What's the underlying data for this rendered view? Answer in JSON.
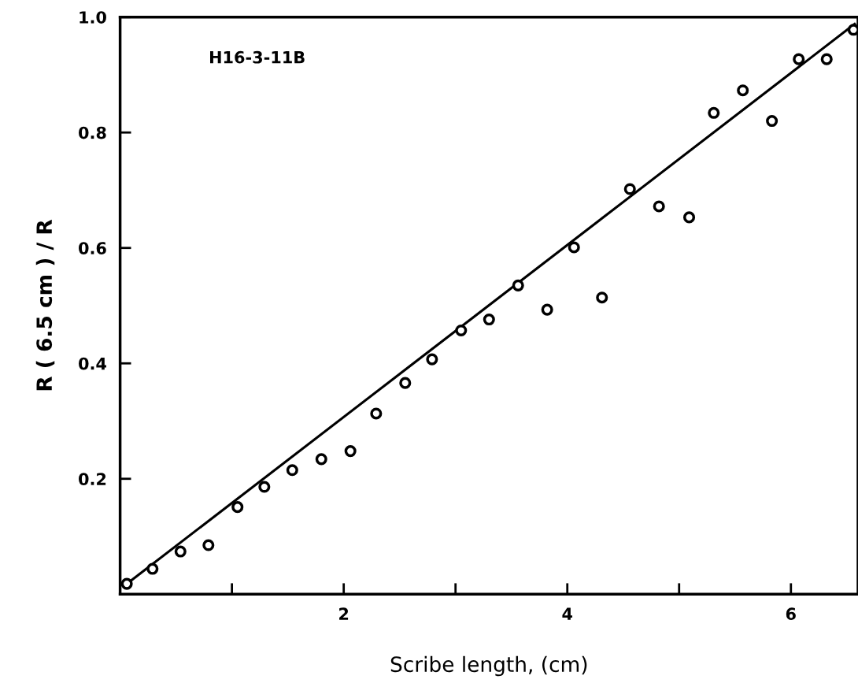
{
  "chart_data": {
    "type": "scatter",
    "xlabel": "Scribe length, (cm)",
    "ylabel": "R ( 6.5 cm ) / R",
    "annotations": [
      "H16-3-11B"
    ],
    "xlim": [
      0,
      6.6
    ],
    "ylim": [
      0,
      1.0
    ],
    "xticks": [
      {
        "value": 1,
        "label": null
      },
      2,
      {
        "value": 3,
        "label": null
      },
      4,
      {
        "value": 5,
        "label": null
      },
      6
    ],
    "yticks": [
      0.2,
      0.4,
      0.6,
      0.8,
      {
        "value": 1.0,
        "label": "1.0"
      }
    ],
    "grid": false,
    "series": [
      {
        "marker": "circle",
        "color": "#000000",
        "x": [
          0.06,
          0.29,
          0.54,
          0.79,
          1.05,
          1.29,
          1.54,
          1.8,
          2.06,
          2.29,
          2.55,
          2.79,
          3.05,
          3.3,
          3.56,
          3.82,
          4.06,
          4.31,
          4.56,
          4.82,
          5.09,
          5.31,
          5.57,
          5.83,
          6.07,
          6.32,
          6.56
        ],
        "values": [
          0.018,
          0.044,
          0.074,
          0.085,
          0.151,
          0.186,
          0.215,
          0.234,
          0.248,
          0.313,
          0.366,
          0.407,
          0.457,
          0.476,
          0.535,
          0.493,
          0.601,
          0.514,
          0.702,
          0.672,
          0.653,
          0.834,
          0.873,
          0.82,
          0.927,
          0.927,
          0.978
        ]
      },
      {
        "type": "line",
        "color": "#000000",
        "x": [
          0.04,
          6.57
        ],
        "values": [
          0.015,
          0.988
        ]
      }
    ]
  }
}
